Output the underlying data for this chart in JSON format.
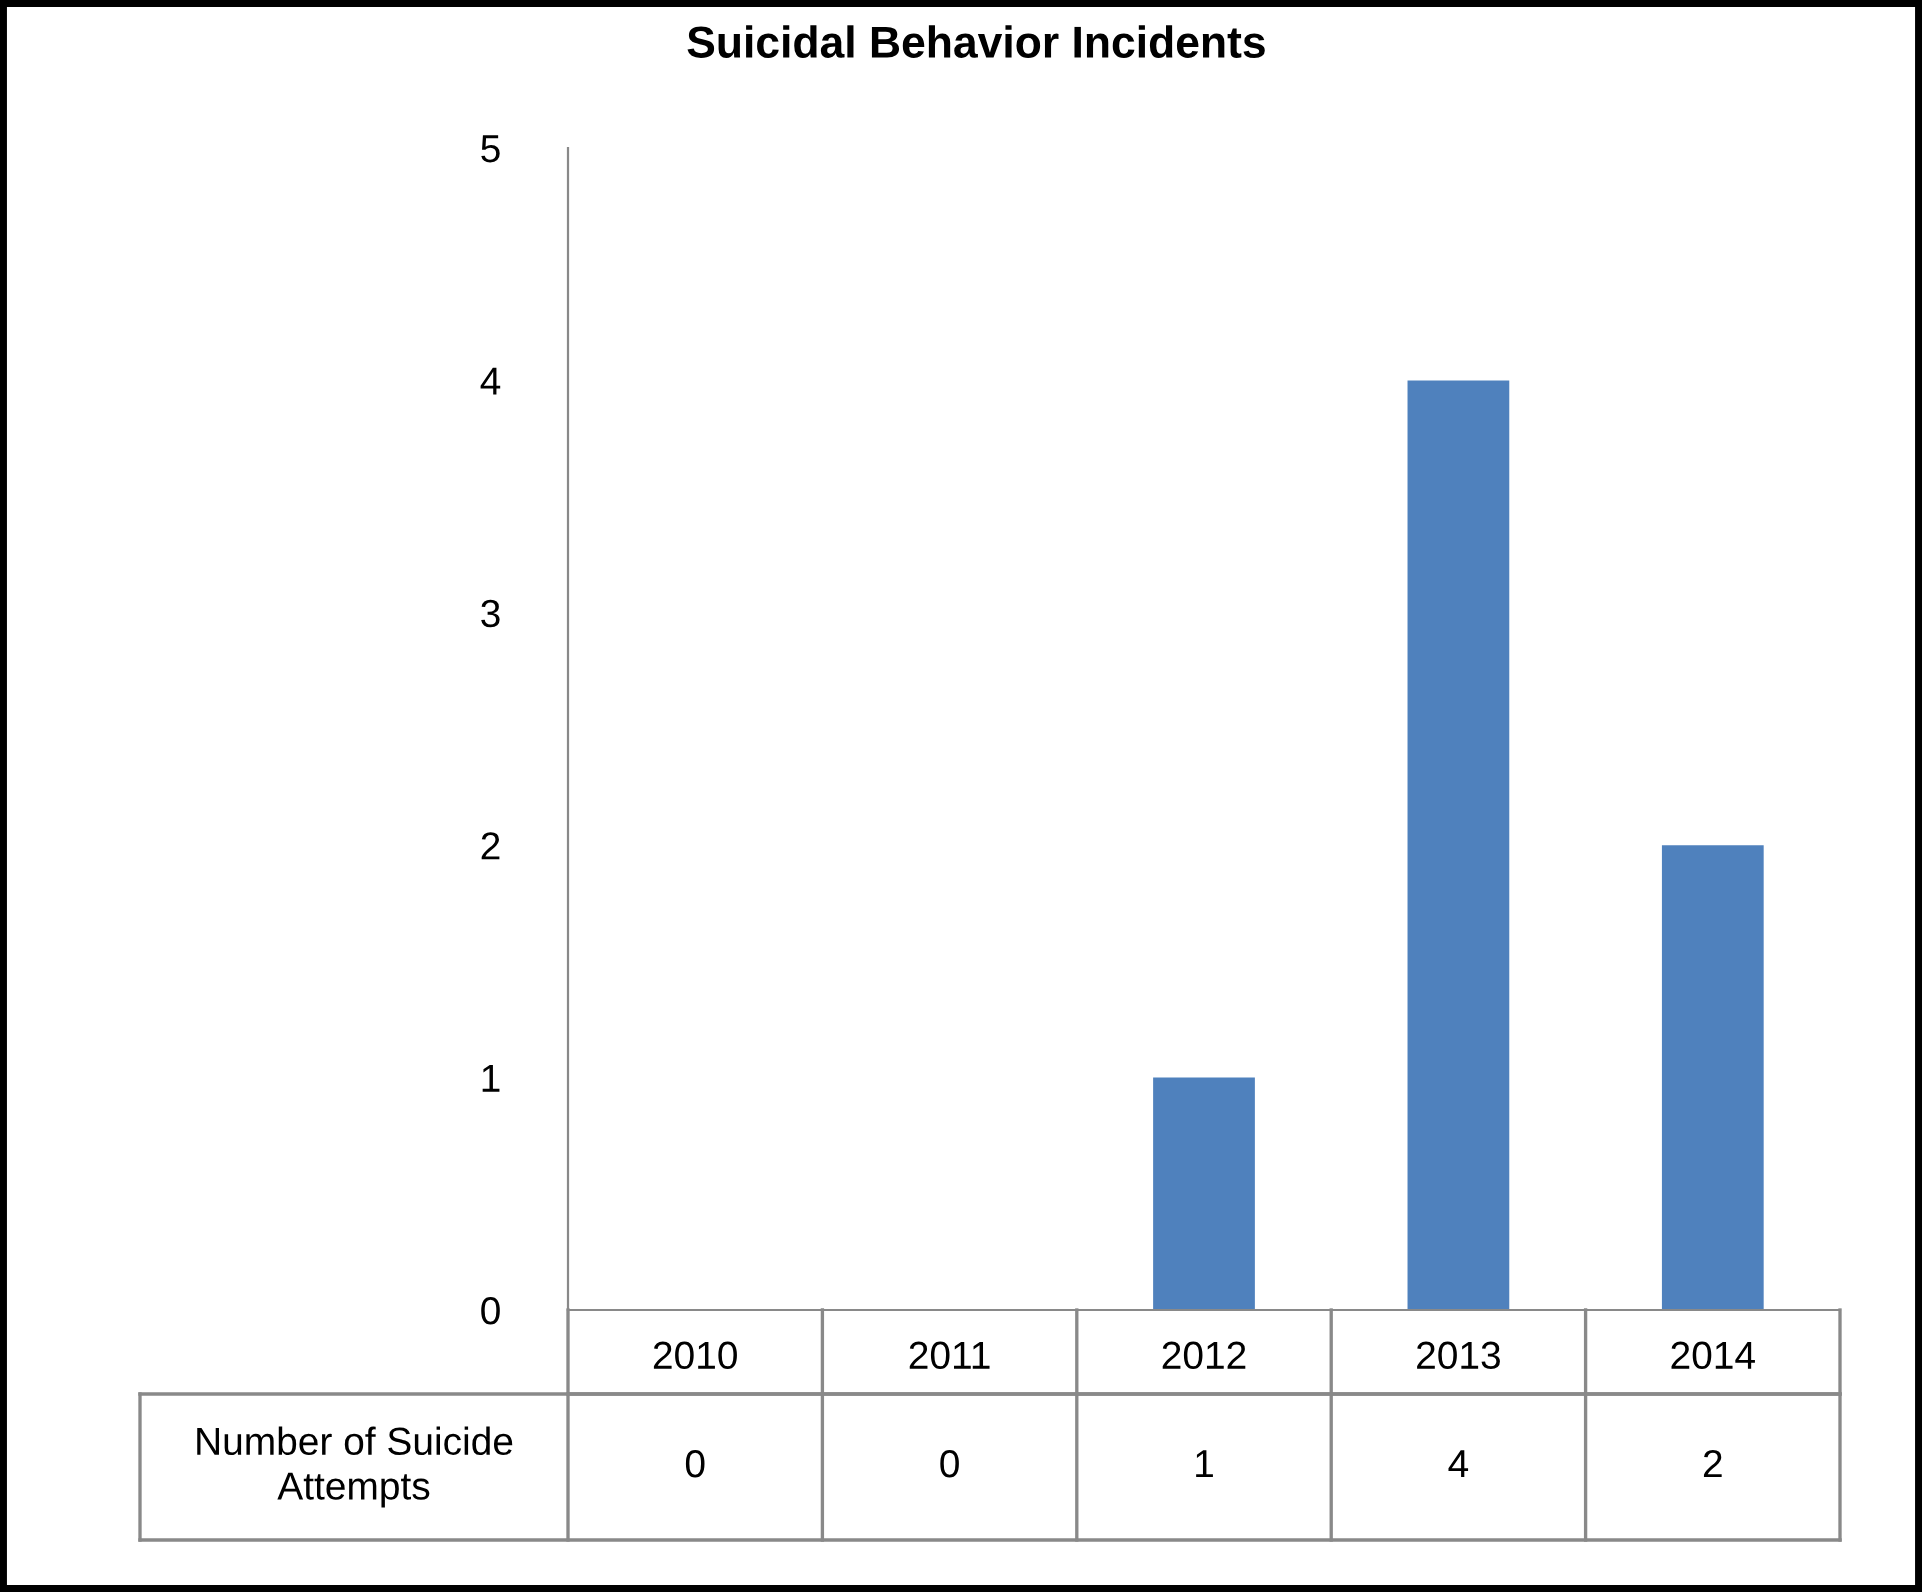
{
  "chart_data": {
    "type": "bar",
    "title": "Suicidal Behavior Incidents",
    "categories": [
      "2010",
      "2011",
      "2012",
      "2013",
      "2014"
    ],
    "series": [
      {
        "name": "Number of Suicide Attempts",
        "color": "#4f81bd",
        "values": [
          0,
          0,
          1,
          4,
          2
        ]
      }
    ],
    "ylim": [
      0,
      5
    ],
    "yticks": [
      0,
      1,
      2,
      3,
      4,
      5
    ],
    "data_labels": true
  }
}
